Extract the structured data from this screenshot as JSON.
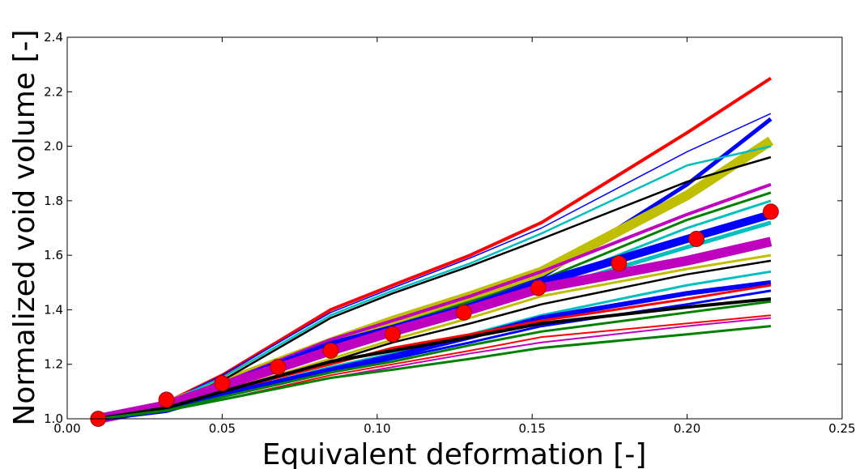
{
  "chart_data": {
    "type": "line",
    "title": "",
    "xlabel": "Equivalent deformation [-]",
    "ylabel": "Normalized void volume [-]",
    "xlim": [
      0.0,
      0.25
    ],
    "ylim": [
      1.0,
      2.4
    ],
    "x_ticks": [
      0.0,
      0.05,
      0.1,
      0.15,
      0.2,
      0.25
    ],
    "x_tick_labels": [
      "0.00",
      "0.05",
      "0.10",
      "0.15",
      "0.20",
      "0.25"
    ],
    "y_ticks": [
      1.0,
      1.2,
      1.4,
      1.6,
      1.8,
      2.0,
      2.2,
      2.4
    ],
    "y_tick_labels": [
      "1.0",
      "1.2",
      "1.4",
      "1.6",
      "1.8",
      "2.0",
      "2.2",
      "2.4"
    ],
    "grid": false,
    "legend": "none",
    "x": [
      0.01,
      0.032,
      0.05,
      0.085,
      0.105,
      0.13,
      0.153,
      0.2,
      0.227
    ],
    "series": [
      {
        "color": "#ff0000",
        "width": 4,
        "values": [
          1.0,
          1.06,
          1.16,
          1.4,
          1.49,
          1.6,
          1.72,
          2.05,
          2.25
        ]
      },
      {
        "color": "#0000ff",
        "width": 1.5,
        "values": [
          1.0,
          1.06,
          1.16,
          1.39,
          1.48,
          1.59,
          1.7,
          1.98,
          2.12
        ]
      },
      {
        "color": "#0000ff",
        "width": 5,
        "values": [
          1.0,
          1.05,
          1.13,
          1.28,
          1.34,
          1.43,
          1.52,
          1.86,
          2.1
        ]
      },
      {
        "color": "#bfbf00",
        "width": 12,
        "values": [
          1.0,
          1.05,
          1.13,
          1.28,
          1.36,
          1.45,
          1.54,
          1.82,
          2.02
        ]
      },
      {
        "color": "#00bfbf",
        "width": 2.5,
        "values": [
          1.0,
          1.06,
          1.15,
          1.38,
          1.47,
          1.57,
          1.68,
          1.93,
          2.0
        ]
      },
      {
        "color": "#000000",
        "width": 2.5,
        "values": [
          1.0,
          1.05,
          1.14,
          1.37,
          1.46,
          1.56,
          1.66,
          1.87,
          1.96
        ]
      },
      {
        "color": "#bf00bf",
        "width": 4,
        "values": [
          1.0,
          1.05,
          1.13,
          1.29,
          1.36,
          1.45,
          1.54,
          1.75,
          1.86
        ]
      },
      {
        "color": "#008000",
        "width": 3,
        "values": [
          1.0,
          1.05,
          1.12,
          1.27,
          1.34,
          1.43,
          1.51,
          1.73,
          1.83
        ]
      },
      {
        "color": "#00bfbf",
        "width": 3,
        "values": [
          1.0,
          1.04,
          1.12,
          1.26,
          1.33,
          1.41,
          1.49,
          1.7,
          1.8
        ]
      },
      {
        "color": "#0000ff",
        "width": 10,
        "values": [
          1.0,
          1.05,
          1.12,
          1.27,
          1.33,
          1.41,
          1.5,
          1.66,
          1.75
        ]
      },
      {
        "color": "#00bfbf",
        "width": 5,
        "values": [
          1.0,
          1.04,
          1.11,
          1.24,
          1.31,
          1.39,
          1.47,
          1.63,
          1.72
        ]
      },
      {
        "color": "#bf00bf",
        "width": 12,
        "values": [
          1.0,
          1.05,
          1.12,
          1.25,
          1.32,
          1.4,
          1.48,
          1.58,
          1.65
        ]
      },
      {
        "color": "#bfbf00",
        "width": 3,
        "values": [
          1.0,
          1.04,
          1.1,
          1.22,
          1.29,
          1.37,
          1.45,
          1.55,
          1.6
        ]
      },
      {
        "color": "#000000",
        "width": 2.5,
        "values": [
          1.0,
          1.04,
          1.1,
          1.21,
          1.28,
          1.35,
          1.42,
          1.53,
          1.58
        ]
      },
      {
        "color": "#00bfbf",
        "width": 3,
        "values": [
          1.0,
          1.03,
          1.09,
          1.19,
          1.24,
          1.31,
          1.38,
          1.49,
          1.54
        ]
      },
      {
        "color": "#0000ff",
        "width": 6,
        "values": [
          1.0,
          1.03,
          1.09,
          1.18,
          1.23,
          1.3,
          1.37,
          1.46,
          1.5
        ]
      },
      {
        "color": "#ff0000",
        "width": 3,
        "values": [
          1.0,
          1.04,
          1.1,
          1.2,
          1.26,
          1.31,
          1.36,
          1.44,
          1.49
        ]
      },
      {
        "color": "#0000ff",
        "width": 3,
        "values": [
          1.0,
          1.03,
          1.08,
          1.17,
          1.22,
          1.28,
          1.34,
          1.42,
          1.47
        ]
      },
      {
        "color": "#000000",
        "width": 4,
        "values": [
          1.0,
          1.04,
          1.1,
          1.21,
          1.25,
          1.3,
          1.35,
          1.41,
          1.44
        ]
      },
      {
        "color": "#008000",
        "width": 3,
        "values": [
          1.0,
          1.03,
          1.08,
          1.17,
          1.21,
          1.27,
          1.32,
          1.39,
          1.43
        ]
      },
      {
        "color": "#ff0000",
        "width": 2,
        "values": [
          1.0,
          1.03,
          1.07,
          1.16,
          1.2,
          1.25,
          1.3,
          1.35,
          1.38
        ]
      },
      {
        "color": "#bf00bf",
        "width": 2,
        "values": [
          1.0,
          1.03,
          1.07,
          1.15,
          1.19,
          1.24,
          1.28,
          1.34,
          1.37
        ]
      },
      {
        "color": "#008000",
        "width": 3,
        "values": [
          1.0,
          1.03,
          1.07,
          1.15,
          1.18,
          1.22,
          1.26,
          1.31,
          1.34
        ]
      }
    ],
    "markers": {
      "color": "#ff0000",
      "x": [
        0.01,
        0.032,
        0.05,
        0.068,
        0.085,
        0.105,
        0.128,
        0.152,
        0.178,
        0.203,
        0.227
      ],
      "y": [
        1.0,
        1.07,
        1.13,
        1.19,
        1.25,
        1.31,
        1.39,
        1.48,
        1.57,
        1.66,
        1.76
      ]
    }
  }
}
